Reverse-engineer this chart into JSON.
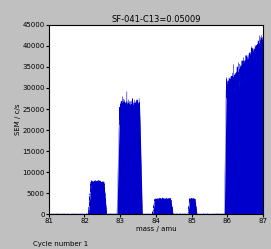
{
  "title": "SF-041-C13=0.05009",
  "ylabel": "SEM / c/s",
  "xlabel": "mass / amu",
  "cycle_label": "Cycle number 1",
  "xlim": [
    81,
    87
  ],
  "ylim": [
    0,
    45000
  ],
  "xticks": [
    81,
    82,
    83,
    84,
    85,
    86,
    87
  ],
  "yticks": [
    0,
    5000,
    10000,
    15000,
    20000,
    25000,
    30000,
    35000,
    40000,
    45000
  ],
  "fill_color": "#0000CC",
  "line_color": "#0000CC",
  "bg_color": "#ffffff",
  "outer_bg": "#c0c0c0",
  "title_fontsize": 6,
  "label_fontsize": 5,
  "tick_fontsize": 5,
  "cycle_fontsize": 5
}
